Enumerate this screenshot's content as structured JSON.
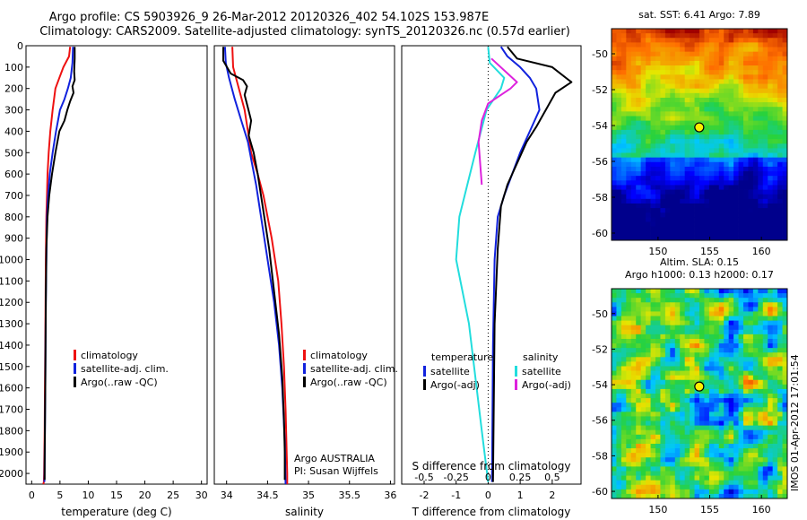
{
  "header": {
    "line1": "Argo profile: CS 5903926_9 26-Mar-2012 20120326_402 54.102S 153.987E",
    "line2": "Climatology: CARS2009. Satellite-adjusted climatology: synTS_20120326.nc (0.57d earlier)"
  },
  "side_stamp": "IMOS 01-Apr-2012 17:01:54",
  "colors": {
    "climatology": "#ee1111",
    "satellite": "#1122dd",
    "argo": "#000000",
    "sal_satellite": "#22dddd",
    "sal_argo": "#dd22dd"
  },
  "chart_data": [
    {
      "type": "line",
      "id": "temperature",
      "xlabel": "temperature (deg C)",
      "xlim": [
        -1,
        31
      ],
      "ylim": [
        2050,
        0
      ],
      "xticks": [
        0,
        5,
        10,
        15,
        20,
        25,
        30
      ],
      "yticks": [
        0,
        100,
        200,
        300,
        400,
        500,
        600,
        700,
        800,
        900,
        1000,
        1100,
        1200,
        1300,
        1400,
        1500,
        1600,
        1700,
        1800,
        1900,
        2000
      ],
      "legend": [
        "climatology",
        "satellite-adj. clim.",
        "Argo(..raw -QC)"
      ],
      "series": [
        {
          "name": "climatology",
          "color": "#ee1111",
          "x": [
            6.8,
            6.6,
            5.6,
            4.9,
            4.2,
            3.7,
            3.3,
            3.0,
            2.8,
            2.7,
            2.6,
            2.5,
            2.45,
            2.4,
            2.35,
            2.3,
            2.2,
            2.15,
            2.1,
            2.05
          ],
          "y": [
            5,
            50,
            100,
            150,
            200,
            300,
            400,
            500,
            600,
            700,
            800,
            1000,
            1200,
            1400,
            1600,
            1800,
            2000,
            2040,
            2045,
            2050
          ]
        },
        {
          "name": "satellite-adj. clim.",
          "color": "#1122dd",
          "x": [
            7.3,
            7.2,
            6.9,
            6.4,
            5.8,
            5.0,
            4.3,
            3.7,
            3.2,
            2.9,
            2.7,
            2.6,
            2.5,
            2.45,
            2.4,
            2.35,
            2.3,
            2.25
          ],
          "y": [
            5,
            80,
            150,
            200,
            250,
            300,
            400,
            500,
            600,
            700,
            800,
            1000,
            1200,
            1400,
            1600,
            1800,
            1950,
            2040
          ]
        },
        {
          "name": "Argo(..raw -QC)",
          "color": "#000000",
          "x": [
            7.6,
            7.6,
            7.5,
            7.6,
            7.2,
            7.4,
            6.8,
            6.3,
            5.8,
            4.9,
            4.2,
            3.6,
            3.1,
            2.8,
            2.6,
            2.5,
            2.45,
            2.4,
            2.35,
            2.3,
            2.3
          ],
          "y": [
            5,
            60,
            120,
            160,
            190,
            220,
            260,
            300,
            350,
            400,
            500,
            600,
            700,
            800,
            950,
            1200,
            1400,
            1600,
            1800,
            1950,
            2030
          ]
        }
      ]
    },
    {
      "type": "line",
      "id": "salinity",
      "xlabel": "salinity",
      "xlim": [
        33.85,
        36.05
      ],
      "ylim": [
        2050,
        0
      ],
      "xticks": [
        34,
        34.5,
        35,
        35.5,
        36
      ],
      "legend": [
        "climatology",
        "satellite-adj. clim.",
        "Argo(..raw -QC)"
      ],
      "annotation": [
        "Argo AUSTRALIA",
        "PI: Susan Wijffels"
      ],
      "series": [
        {
          "name": "climatology",
          "color": "#ee1111",
          "x": [
            34.07,
            34.08,
            34.15,
            34.22,
            34.26,
            34.3,
            34.38,
            34.45,
            34.55,
            34.63,
            34.67,
            34.7,
            34.72,
            34.73,
            34.74,
            34.74
          ],
          "y": [
            5,
            100,
            200,
            300,
            400,
            500,
            600,
            700,
            900,
            1100,
            1300,
            1500,
            1700,
            1850,
            2000,
            2050
          ]
        },
        {
          "name": "satellite-adj. clim.",
          "color": "#1122dd",
          "x": [
            33.98,
            33.99,
            34.03,
            34.1,
            34.18,
            34.26,
            34.31,
            34.36,
            34.42,
            34.5,
            34.58,
            34.64,
            34.68,
            34.71,
            34.72
          ],
          "y": [
            5,
            80,
            150,
            250,
            350,
            450,
            550,
            650,
            800,
            1000,
            1200,
            1400,
            1600,
            1850,
            2050
          ]
        },
        {
          "name": "Argo(..raw -QC)",
          "color": "#000000",
          "x": [
            33.96,
            33.96,
            34.05,
            34.2,
            34.25,
            34.22,
            34.26,
            34.3,
            34.27,
            34.33,
            34.38,
            34.44,
            34.52,
            34.58,
            34.64,
            34.68,
            34.7,
            34.71,
            34.71
          ],
          "y": [
            5,
            70,
            130,
            160,
            190,
            230,
            290,
            350,
            420,
            500,
            600,
            750,
            950,
            1150,
            1350,
            1550,
            1750,
            1900,
            2030
          ]
        }
      ]
    },
    {
      "type": "line",
      "id": "differences",
      "xlabel": "T difference from climatology",
      "top_axis_label": "S difference from climatology",
      "xlim": [
        -2.7,
        2.9
      ],
      "ylim": [
        2050,
        0
      ],
      "xticks": [
        -2,
        -1,
        0,
        1,
        2
      ],
      "top_xticks": [
        "-0.5",
        "-0.25",
        "0",
        "0.25",
        "0.5"
      ],
      "legend_temperature_title": "temperature",
      "legend_salinity_title": "salinity",
      "legend_temperature": [
        "satellite",
        "Argo(-adj)"
      ],
      "legend_salinity": [
        "satellite",
        "Argo(-adj)"
      ],
      "series": [
        {
          "name": "T satellite",
          "color": "#1122dd",
          "x": [
            0.4,
            0.6,
            1.0,
            1.3,
            1.5,
            1.6,
            1.3,
            1.0,
            0.75,
            0.5,
            0.3,
            0.2,
            0.15,
            0.12
          ],
          "y": [
            5,
            50,
            100,
            150,
            200,
            300,
            400,
            500,
            600,
            700,
            800,
            1000,
            1400,
            2040
          ]
        },
        {
          "name": "T Argo(-adj)",
          "color": "#000000",
          "x": [
            0.6,
            0.9,
            2.0,
            2.6,
            2.1,
            1.8,
            1.5,
            1.2,
            0.9,
            0.6,
            0.4,
            0.3,
            0.2,
            0.15
          ],
          "y": [
            5,
            60,
            100,
            170,
            220,
            300,
            380,
            450,
            550,
            650,
            750,
            950,
            1300,
            2040
          ]
        },
        {
          "name": "S satellite",
          "color": "#22dddd",
          "x": [
            0.0,
            0.05,
            0.5,
            0.4,
            -0.05,
            -0.4,
            -0.9,
            -1.0,
            -0.6,
            -0.2,
            0.0
          ],
          "y": [
            5,
            80,
            150,
            200,
            300,
            500,
            800,
            1000,
            1300,
            1800,
            2040
          ]
        },
        {
          "name": "S Argo(-adj)",
          "color": "#dd22dd",
          "x": [
            0.1,
            0.9,
            0.7,
            0.0,
            -0.2,
            -0.3,
            -0.25,
            -0.2
          ],
          "y": [
            60,
            170,
            200,
            270,
            350,
            450,
            550,
            650
          ]
        }
      ]
    },
    {
      "type": "heatmap",
      "id": "sst-map",
      "title": "sat. SST: 6.41  Argo: 7.89",
      "xticks": [
        150,
        155,
        160
      ],
      "yticks": [
        -50,
        -52,
        -54,
        -56,
        -58,
        -60
      ],
      "xlim": [
        145.5,
        162.5
      ],
      "ylim": [
        -60.4,
        -48.6
      ],
      "marker": {
        "lon": 153.987,
        "lat": -54.102
      }
    },
    {
      "type": "heatmap",
      "id": "sla-map",
      "title": "Altim. SLA: 0.15",
      "subtitle": "Argo h1000: 0.13  h2000: 0.17",
      "xticks": [
        150,
        155,
        160
      ],
      "yticks": [
        -50,
        -52,
        -54,
        -56,
        -58,
        -60
      ],
      "xlim": [
        145.5,
        162.5
      ],
      "ylim": [
        -60.4,
        -48.6
      ],
      "marker": {
        "lon": 153.987,
        "lat": -54.102
      }
    }
  ]
}
